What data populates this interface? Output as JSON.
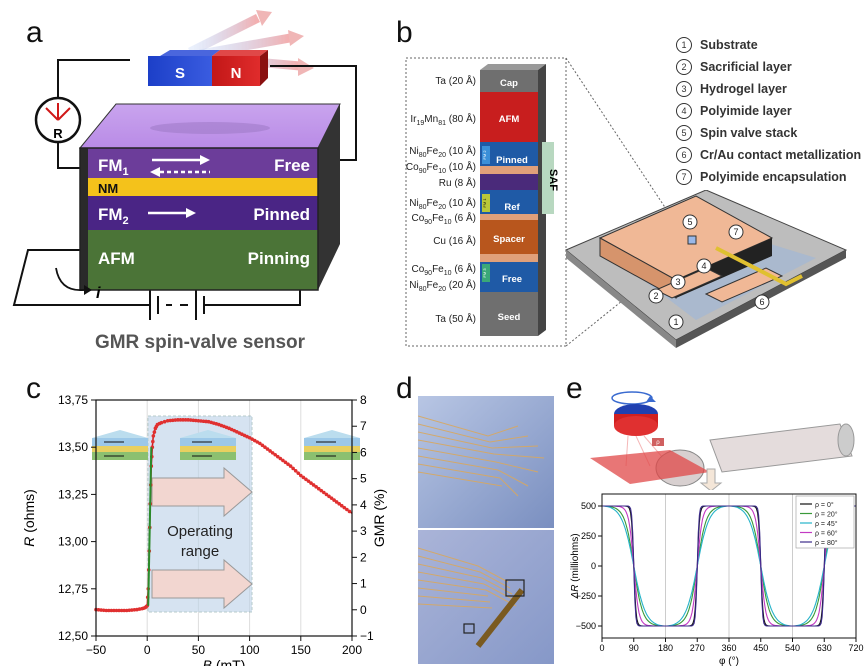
{
  "panels": {
    "a": "a",
    "b": "b",
    "c": "c",
    "d": "d",
    "e": "e"
  },
  "panel_a": {
    "magnet_s": "S",
    "magnet_n": "N",
    "meter": "R",
    "layers": [
      {
        "label": "FM",
        "sub": "1",
        "right": "Free",
        "color": "#6c3d9a"
      },
      {
        "label": "NM",
        "sub": "",
        "right": "",
        "color": "#f4c21b"
      },
      {
        "label": "FM",
        "sub": "2",
        "right": "Pinned",
        "color": "#4a2585"
      },
      {
        "label": "AFM",
        "sub": "",
        "right": "Pinning",
        "color": "#4b7437"
      }
    ],
    "current": "i",
    "caption": "GMR spin-valve sensor"
  },
  "panel_b": {
    "stack": [
      {
        "label": "Cap",
        "mat": "Ta (20 Å)",
        "color": "#6f6f6f"
      },
      {
        "label": "AFM",
        "mat": "Ir19Mn81 (80 Å)",
        "color": "#c81e1e"
      },
      {
        "label": "Pinned",
        "mat": "Ni80Fe20 (10 Å) / Co90Fe10 (10 Å)",
        "color": "#1f5aa6"
      },
      {
        "label": "",
        "mat": "Ru (8 Å)",
        "color": "#4a2a7a"
      },
      {
        "label": "Ref",
        "mat": "Ni80Fe20 (10 Å) / Co90Fe10 (6 Å)",
        "color": "#1f5aa6"
      },
      {
        "label": "Spacer",
        "mat": "Cu (16 Å)",
        "color": "#b8561d"
      },
      {
        "label": "Free",
        "mat": "Co90Fe10 (6 Å) / Ni80Fe20 (20 Å)",
        "color": "#1f5aa6"
      },
      {
        "label": "Seed",
        "mat": "Ta (50 Å)",
        "color": "#6f6f6f"
      }
    ],
    "saf": "SAF",
    "materials": {
      "ta20": "Ta (20 Å)",
      "irmn_a": "Ir",
      "irmn_b": "19",
      "irmn_c": "Mn",
      "irmn_d": "81",
      "irmn_e": " (80 Å)",
      "ru": "Ru (8 Å)",
      "cu": "Cu (16 Å)",
      "ta50": "Ta (50 Å)",
      "nife": "Ni",
      "nife_s1": "80",
      "nife_m": "Fe",
      "nife_s2": "20",
      "cofe": "Co",
      "cofe_s1": "90",
      "cofe_m": "Fe",
      "cofe_s2": "10",
      "t10": " (10 Å)",
      "t6": " (6 Å)",
      "t20": " (20 Å)"
    },
    "fm_tags": [
      "FM 2",
      "FM 1",
      "FM 3"
    ],
    "legend": [
      {
        "num": "1",
        "text": "Substrate"
      },
      {
        "num": "2",
        "text": "Sacrificial layer"
      },
      {
        "num": "3",
        "text": "Hydrogel layer"
      },
      {
        "num": "4",
        "text": "Polyimide layer"
      },
      {
        "num": "5",
        "text": "Spin valve stack"
      },
      {
        "num": "6",
        "text": "Cr/Au contact metallization"
      },
      {
        "num": "7",
        "text": "Polyimide encapsulation"
      }
    ],
    "device_nums": [
      "1",
      "2",
      "3",
      "4",
      "5",
      "6",
      "7"
    ]
  },
  "chart_c": {
    "type": "line",
    "xlabel_italic": "B",
    "xlabel_rest": " (mT)",
    "ylabel_italic": "R",
    "ylabel_rest": " (ohms)",
    "y2label": "GMR (%)",
    "xlim": [
      -50,
      200
    ],
    "ylim": [
      12.5,
      13.75
    ],
    "y2lim": [
      -1,
      8
    ],
    "xticks": [
      "−50",
      "0",
      "50",
      "100",
      "150",
      "200"
    ],
    "yticks": [
      "12,50",
      "12,75",
      "13,00",
      "13,25",
      "13,50",
      "13,75"
    ],
    "y2ticks": [
      "−1",
      "0",
      "1",
      "2",
      "3",
      "4",
      "5",
      "6",
      "7",
      "8"
    ],
    "series": {
      "x": [
        -50,
        -40,
        -30,
        -20,
        -10,
        -5,
        -2,
        0,
        1,
        2,
        3,
        4,
        5,
        6,
        8,
        10,
        14,
        20,
        30,
        40,
        50,
        60,
        70,
        80,
        90,
        100,
        110,
        120,
        130,
        140,
        150,
        160,
        170,
        180,
        190,
        200
      ],
      "y": [
        12.64,
        12.635,
        12.635,
        12.635,
        12.64,
        12.645,
        12.65,
        12.66,
        12.75,
        12.95,
        13.2,
        13.4,
        13.5,
        13.56,
        13.6,
        13.62,
        13.63,
        13.64,
        13.645,
        13.645,
        13.64,
        13.635,
        13.62,
        13.6,
        13.575,
        13.55,
        13.52,
        13.48,
        13.44,
        13.4,
        13.35,
        13.31,
        13.27,
        13.23,
        13.19,
        13.15
      ]
    },
    "annotation": [
      "Operating",
      "range"
    ]
  },
  "chart_e": {
    "type": "line",
    "xlabel": "φ (°)",
    "ylabel_italic": "ΔR",
    "ylabel_rest": " (milliohms)",
    "xlim": [
      0,
      720
    ],
    "ylim": [
      -600,
      600
    ],
    "xticks": [
      "0",
      "90",
      "180",
      "270",
      "360",
      "450",
      "540",
      "630",
      "720"
    ],
    "yticks": [
      "−500",
      "−250",
      "0",
      "250",
      "500"
    ],
    "series": [
      {
        "name": "ρ = 0°",
        "color": "#111111",
        "k": 9
      },
      {
        "name": "ρ = 20°",
        "color": "#3a9a3a",
        "k": 2.2
      },
      {
        "name": "ρ = 45°",
        "color": "#25b3c9",
        "k": 1.6
      },
      {
        "name": "ρ = 60°",
        "color": "#c33ac3",
        "k": 4
      },
      {
        "name": "ρ = 80°",
        "color": "#3b2a8a",
        "k": 12
      }
    ],
    "rho": "ρ"
  }
}
